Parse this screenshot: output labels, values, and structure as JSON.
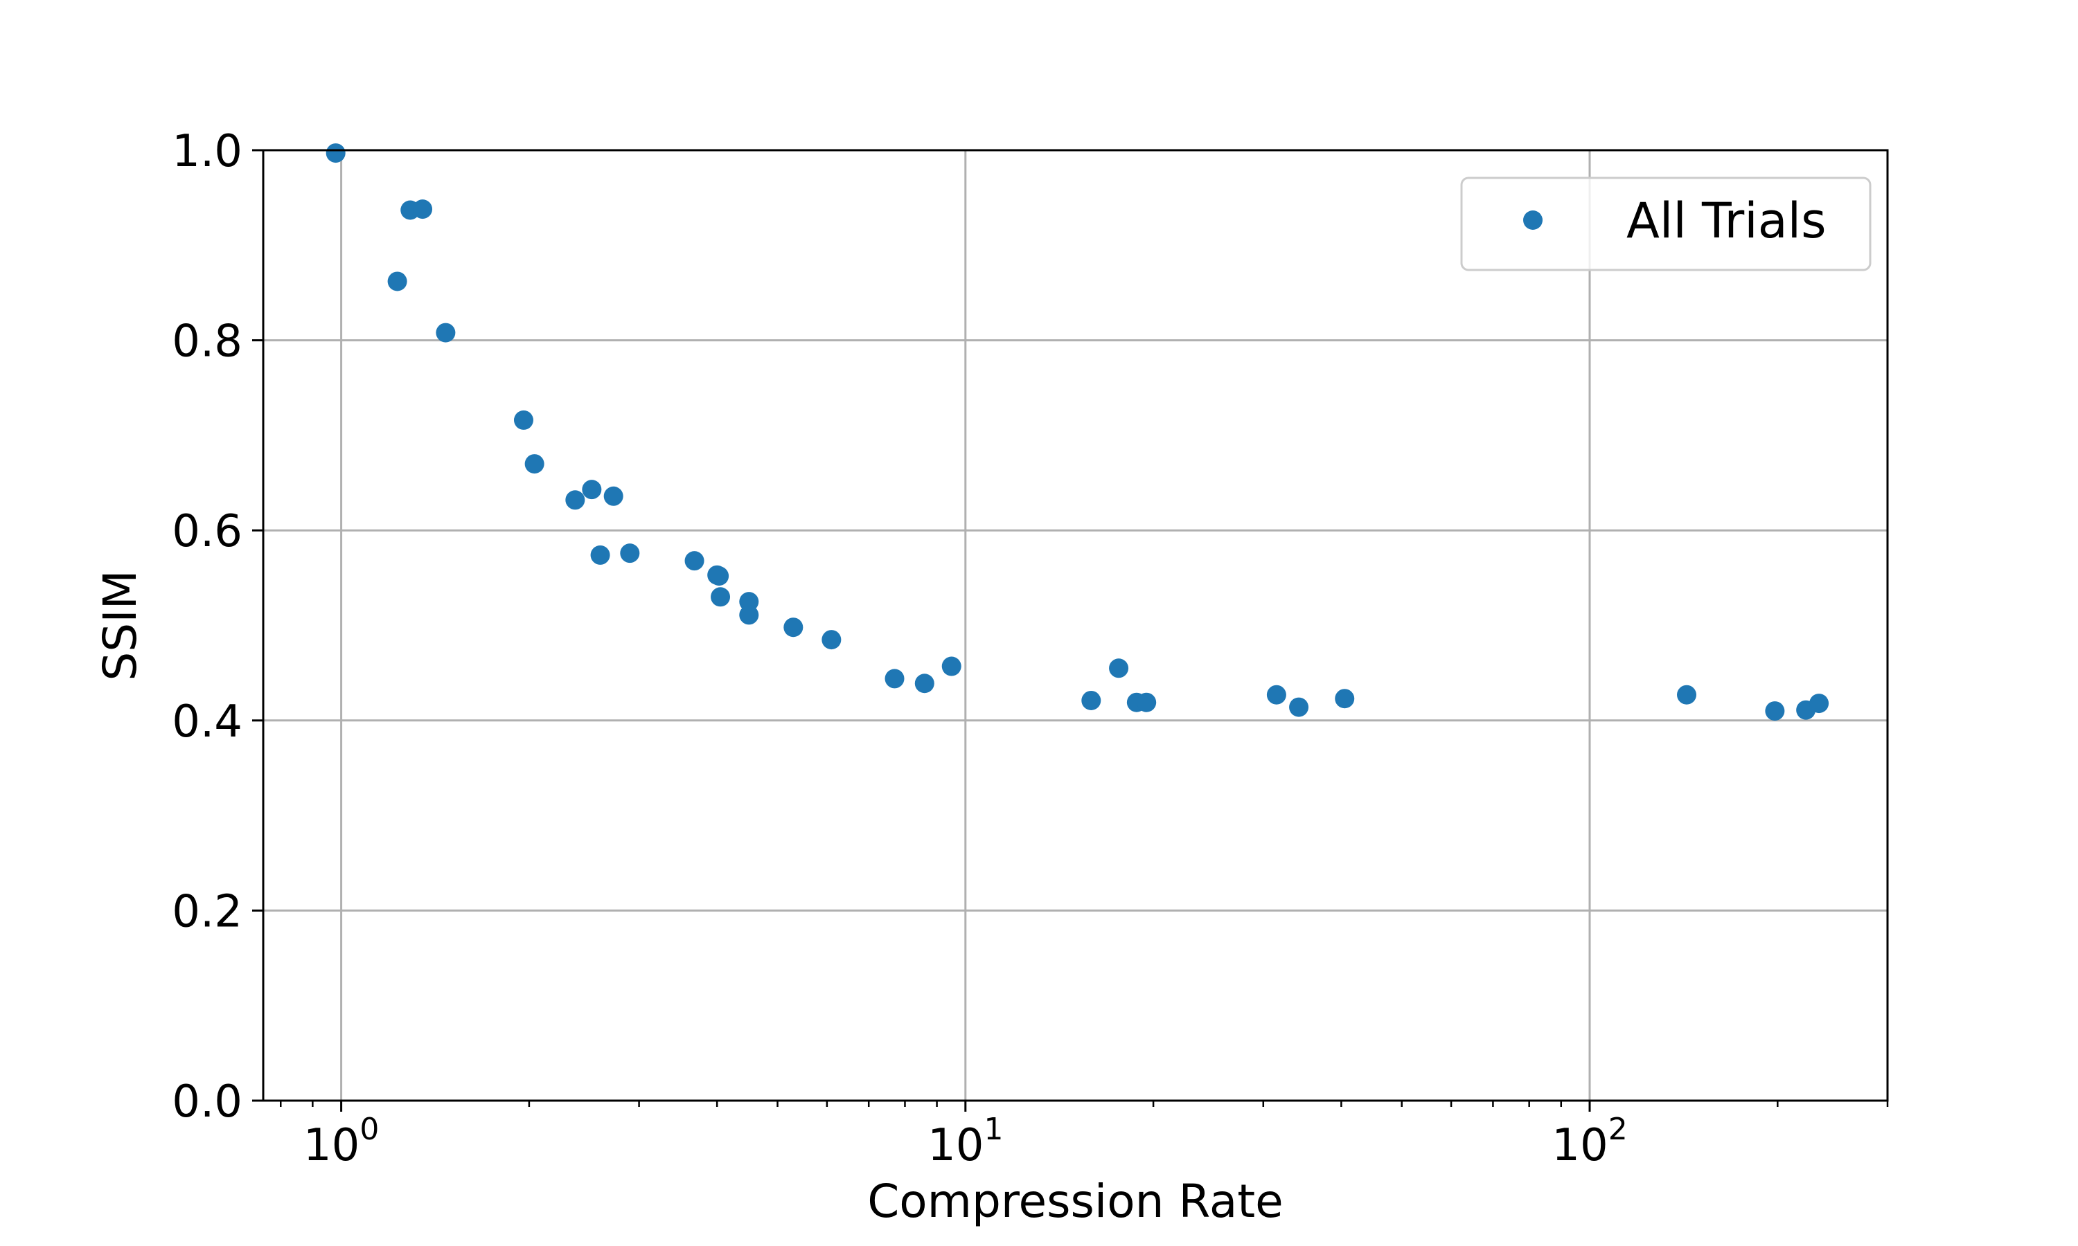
{
  "chart_data": {
    "type": "scatter",
    "title": "",
    "xlabel": "Compression Rate",
    "ylabel": "SSIM",
    "xscale": "log",
    "xlim": [
      0.75,
      300
    ],
    "ylim": [
      0.0,
      1.0
    ],
    "grid": true,
    "legend_position": "top-right",
    "x_ticks": [
      {
        "value": 1,
        "base": "10",
        "exp": "0"
      },
      {
        "value": 10,
        "base": "10",
        "exp": "1"
      },
      {
        "value": 100,
        "base": "10",
        "exp": "2"
      }
    ],
    "y_ticks": [
      {
        "value": 0.0,
        "label": "0.0"
      },
      {
        "value": 0.2,
        "label": "0.2"
      },
      {
        "value": 0.4,
        "label": "0.4"
      },
      {
        "value": 0.6,
        "label": "0.6"
      },
      {
        "value": 0.8,
        "label": "0.8"
      },
      {
        "value": 1.0,
        "label": "1.0"
      }
    ],
    "series": [
      {
        "name": "All Trials",
        "color": "#1f77b4",
        "points": [
          [
            0.98,
            0.997
          ],
          [
            1.23,
            0.862
          ],
          [
            1.29,
            0.937
          ],
          [
            1.35,
            0.938
          ],
          [
            1.47,
            0.808
          ],
          [
            1.96,
            0.716
          ],
          [
            2.04,
            0.67
          ],
          [
            2.37,
            0.632
          ],
          [
            2.52,
            0.643
          ],
          [
            2.6,
            0.574
          ],
          [
            2.73,
            0.636
          ],
          [
            2.9,
            0.576
          ],
          [
            3.68,
            0.568
          ],
          [
            4.0,
            0.553
          ],
          [
            4.03,
            0.552
          ],
          [
            4.05,
            0.53
          ],
          [
            4.5,
            0.525
          ],
          [
            4.5,
            0.511
          ],
          [
            5.3,
            0.498
          ],
          [
            6.1,
            0.485
          ],
          [
            7.7,
            0.444
          ],
          [
            8.6,
            0.439
          ],
          [
            9.5,
            0.457
          ],
          [
            15.9,
            0.421
          ],
          [
            17.6,
            0.455
          ],
          [
            18.8,
            0.419
          ],
          [
            19.5,
            0.419
          ],
          [
            31.5,
            0.427
          ],
          [
            34.2,
            0.414
          ],
          [
            40.5,
            0.423
          ],
          [
            143,
            0.427
          ],
          [
            198,
            0.41
          ],
          [
            222,
            0.411
          ],
          [
            233,
            0.418
          ]
        ]
      }
    ]
  }
}
